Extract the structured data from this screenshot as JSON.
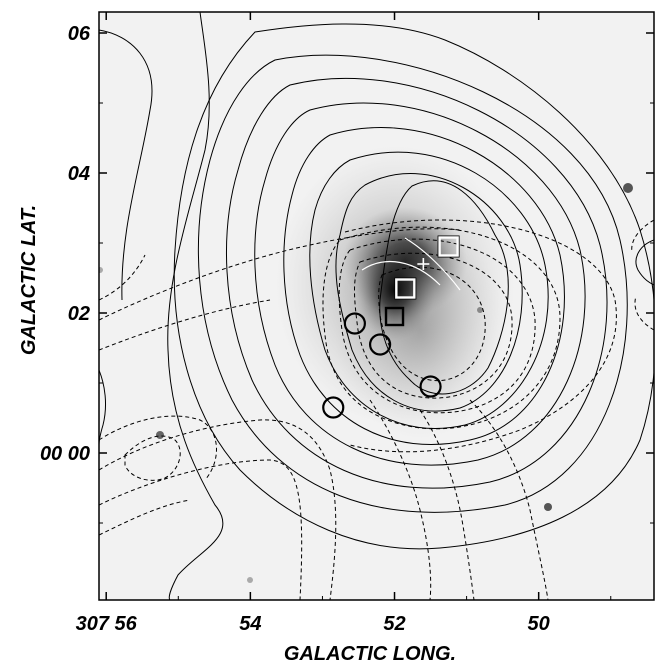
{
  "chart_data": {
    "type": "contour",
    "xlabel": "GALACTIC LONG.",
    "ylabel": "GALACTIC LAT.",
    "x_ticks": [
      {
        "label": "307 56",
        "value": 56
      },
      {
        "label": "54",
        "value": 54
      },
      {
        "label": "52",
        "value": 52
      },
      {
        "label": "50",
        "value": 50
      }
    ],
    "y_ticks": [
      {
        "label": "06",
        "value": 6
      },
      {
        "label": "04",
        "value": 4
      },
      {
        "label": "02",
        "value": 2
      },
      {
        "label": "00 00",
        "value": 0
      }
    ],
    "xlim": [
      56.1,
      48.4
    ],
    "ylim": [
      -2.1,
      6.3
    ],
    "grid": false,
    "background": "greyscale image, bright source near l=52, b=2.7",
    "circles": [
      {
        "x": 52.55,
        "y": 1.85
      },
      {
        "x": 52.2,
        "y": 1.55
      },
      {
        "x": 51.5,
        "y": 0.95
      },
      {
        "x": 52.85,
        "y": 0.65
      }
    ],
    "squares": [
      {
        "x": 51.25,
        "y": 2.95,
        "color": "white"
      },
      {
        "x": 51.85,
        "y": 2.35,
        "color": "white"
      },
      {
        "x": 52.0,
        "y": 1.95,
        "color": "black"
      }
    ],
    "cross": {
      "x": 51.6,
      "y": 2.7
    },
    "colors": {
      "solid_contour": "#000000",
      "dashed_contour": "#000000",
      "background": "#f2f2f2"
    }
  }
}
